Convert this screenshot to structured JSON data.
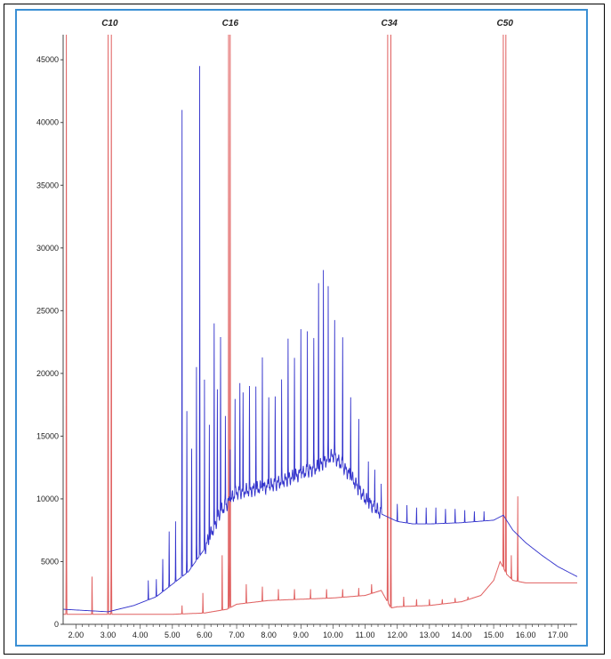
{
  "chart_data": {
    "type": "line",
    "title": "",
    "xlabel": "",
    "ylabel": "",
    "xlim": [
      1.6,
      17.6
    ],
    "ylim": [
      0,
      47000
    ],
    "x_ticks": [
      2.0,
      3.0,
      4.0,
      5.0,
      6.0,
      7.0,
      8.0,
      9.0,
      10.0,
      11.0,
      12.0,
      13.0,
      14.0,
      15.0,
      16.0,
      17.0
    ],
    "x_tick_labels": [
      "2.00",
      "3.00",
      "4.00",
      "5.00",
      "6.00",
      "7.00",
      "8.00",
      "9.00",
      "10.00",
      "11.00",
      "12.00",
      "13.00",
      "14.00",
      "15.00",
      "16.00",
      "17.00"
    ],
    "y_ticks": [
      0,
      5000,
      10000,
      15000,
      20000,
      25000,
      30000,
      35000,
      40000,
      45000
    ],
    "y_tick_labels": [
      "0",
      "5000",
      "10000",
      "15000",
      "20000",
      "25000",
      "30000",
      "35000",
      "40000",
      "45000"
    ],
    "grid": false,
    "legend": "none",
    "peak_labels": [
      {
        "text": "C10",
        "x": 3.05
      },
      {
        "text": "C16",
        "x": 6.8
      },
      {
        "text": "C34",
        "x": 11.75
      },
      {
        "text": "C50",
        "x": 15.35
      }
    ],
    "series": [
      {
        "color": "#e06060",
        "baseline": [
          [
            1.6,
            800
          ],
          [
            5.0,
            800
          ],
          [
            6.0,
            900
          ],
          [
            6.7,
            1200
          ],
          [
            7.0,
            1600
          ],
          [
            8.0,
            1900
          ],
          [
            9.0,
            2000
          ],
          [
            10.0,
            2100
          ],
          [
            11.0,
            2300
          ],
          [
            11.5,
            2700
          ],
          [
            11.8,
            1300
          ],
          [
            12.0,
            1400
          ],
          [
            13.0,
            1500
          ],
          [
            14.0,
            1800
          ],
          [
            14.6,
            2300
          ],
          [
            15.0,
            3500
          ],
          [
            15.2,
            5000
          ],
          [
            15.4,
            4000
          ],
          [
            15.6,
            3500
          ],
          [
            16.0,
            3300
          ],
          [
            17.6,
            3300
          ]
        ],
        "peaks": [
          [
            1.7,
            47000
          ],
          [
            2.5,
            3800
          ],
          [
            3.0,
            47000
          ],
          [
            3.1,
            47000
          ],
          [
            4.5,
            800
          ],
          [
            5.3,
            1500
          ],
          [
            5.95,
            2500
          ],
          [
            6.55,
            5500
          ],
          [
            6.75,
            47000
          ],
          [
            6.8,
            47000
          ],
          [
            7.3,
            3200
          ],
          [
            7.8,
            3000
          ],
          [
            8.3,
            2800
          ],
          [
            8.8,
            2800
          ],
          [
            9.3,
            2800
          ],
          [
            9.8,
            2800
          ],
          [
            10.3,
            2800
          ],
          [
            10.8,
            2900
          ],
          [
            11.2,
            3200
          ],
          [
            11.7,
            47000
          ],
          [
            11.8,
            47000
          ],
          [
            12.2,
            2200
          ],
          [
            12.6,
            2000
          ],
          [
            13.0,
            2000
          ],
          [
            13.4,
            2000
          ],
          [
            13.8,
            2100
          ],
          [
            14.2,
            2200
          ],
          [
            15.3,
            47000
          ],
          [
            15.38,
            47000
          ],
          [
            15.55,
            5500
          ],
          [
            15.75,
            10200
          ]
        ]
      },
      {
        "color": "#3333cc",
        "baseline": [
          [
            1.6,
            1200
          ],
          [
            3.0,
            1000
          ],
          [
            3.8,
            1500
          ],
          [
            4.5,
            2200
          ],
          [
            5.0,
            3200
          ],
          [
            5.5,
            4200
          ],
          [
            6.0,
            6000
          ],
          [
            6.5,
            9000
          ],
          [
            7.0,
            10500
          ],
          [
            8.0,
            11000
          ],
          [
            9.0,
            12000
          ],
          [
            9.5,
            12500
          ],
          [
            10.0,
            13500
          ],
          [
            10.5,
            12000
          ],
          [
            11.0,
            10000
          ],
          [
            11.5,
            8800
          ],
          [
            12.0,
            8200
          ],
          [
            12.5,
            8000
          ],
          [
            13.0,
            8000
          ],
          [
            14.0,
            8100
          ],
          [
            15.0,
            8300
          ],
          [
            15.3,
            8700
          ],
          [
            15.6,
            7500
          ],
          [
            16.0,
            6500
          ],
          [
            16.5,
            5500
          ],
          [
            17.0,
            4600
          ],
          [
            17.6,
            3800
          ]
        ],
        "peaks": [
          [
            4.25,
            3500
          ],
          [
            4.5,
            3600
          ],
          [
            4.7,
            5200
          ],
          [
            4.9,
            7400
          ],
          [
            5.1,
            8200
          ],
          [
            5.3,
            41000
          ],
          [
            5.45,
            17000
          ],
          [
            5.6,
            14000
          ],
          [
            5.75,
            20500
          ],
          [
            5.85,
            44500
          ],
          [
            6.0,
            19500
          ],
          [
            6.15,
            16000
          ],
          [
            6.3,
            23500
          ],
          [
            6.4,
            18500
          ],
          [
            6.5,
            23000
          ],
          [
            6.65,
            16500
          ],
          [
            6.8,
            14500
          ],
          [
            6.95,
            18000
          ],
          [
            7.1,
            19000
          ],
          [
            7.2,
            18000
          ],
          [
            7.4,
            18500
          ],
          [
            7.6,
            19000
          ],
          [
            7.8,
            21800
          ],
          [
            8.0,
            18500
          ],
          [
            8.2,
            18000
          ],
          [
            8.4,
            19000
          ],
          [
            8.6,
            22500
          ],
          [
            8.8,
            21500
          ],
          [
            9.0,
            24000
          ],
          [
            9.2,
            23500
          ],
          [
            9.4,
            22500
          ],
          [
            9.55,
            27300
          ],
          [
            9.7,
            28000
          ],
          [
            9.85,
            26500
          ],
          [
            10.05,
            24000
          ],
          [
            10.3,
            23000
          ],
          [
            10.55,
            18500
          ],
          [
            10.8,
            16200
          ],
          [
            11.1,
            13200
          ],
          [
            11.3,
            12500
          ],
          [
            11.5,
            11200
          ],
          [
            12.0,
            9600
          ],
          [
            12.3,
            9500
          ],
          [
            12.6,
            9300
          ],
          [
            12.9,
            9300
          ],
          [
            13.2,
            9300
          ],
          [
            13.5,
            9200
          ],
          [
            13.8,
            9200
          ],
          [
            14.1,
            9100
          ],
          [
            14.4,
            9000
          ],
          [
            14.7,
            9000
          ]
        ]
      }
    ]
  }
}
